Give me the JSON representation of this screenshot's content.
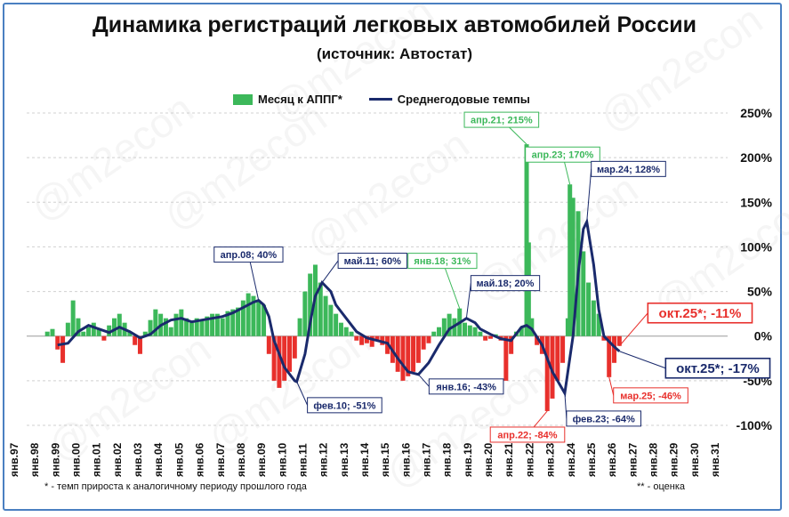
{
  "title": "Динамика регистраций легковых автомобилей России",
  "subtitle": "(источник: Автостат)",
  "legend": {
    "bar_label": "Месяц к АППГ*",
    "line_label": "Среднегодовые темпы"
  },
  "footnote_left": "* - темп прироста к аналогичному периоду прошлого года",
  "footnote_right": "** - оценка",
  "watermark": "@m2econ",
  "colors": {
    "bar_positive": "#3cb85a",
    "bar_negative": "#e8302c",
    "line": "#1a2a6c",
    "frame": "#4a7fc1"
  },
  "chart_data": {
    "type": "bar+line",
    "title": "Динамика регистраций легковых автомобилей России",
    "ylim": [
      -100,
      250
    ],
    "yticks": [
      -100,
      -50,
      0,
      50,
      100,
      150,
      200,
      250
    ],
    "ytick_labels": [
      "-100%",
      "-50%",
      "0%",
      "50%",
      "100%",
      "150%",
      "200%",
      "250%"
    ],
    "x_range": [
      1997,
      2031
    ],
    "xtick_labels": [
      "янв.97",
      "янв.98",
      "янв.99",
      "янв.00",
      "янв.01",
      "янв.02",
      "янв.03",
      "янв.04",
      "янв.05",
      "янв.06",
      "янв.07",
      "янв.08",
      "янв.09",
      "янв.10",
      "янв.11",
      "янв.12",
      "янв.13",
      "янв.14",
      "янв.15",
      "янв.16",
      "янв.17",
      "янв.18",
      "янв.19",
      "янв.20",
      "янв.21",
      "янв.22",
      "янв.23",
      "янв.24",
      "янв.25",
      "янв.26",
      "янв.27",
      "янв.28",
      "янв.29",
      "янв.30",
      "янв.31"
    ],
    "grid": "horizontal dashed",
    "legend_position": "top",
    "series": [
      {
        "name": "Месяц к АППГ*",
        "kind": "bar",
        "points": [
          [
            1998.0,
            5
          ],
          [
            1998.25,
            8
          ],
          [
            1998.5,
            -15
          ],
          [
            1998.75,
            -30
          ],
          [
            1999.0,
            15
          ],
          [
            1999.25,
            40
          ],
          [
            1999.5,
            20
          ],
          [
            1999.75,
            5
          ],
          [
            2000.0,
            10
          ],
          [
            2000.25,
            15
          ],
          [
            2000.5,
            8
          ],
          [
            2000.75,
            -5
          ],
          [
            2001.0,
            12
          ],
          [
            2001.25,
            20
          ],
          [
            2001.5,
            25
          ],
          [
            2001.75,
            15
          ],
          [
            2002.0,
            5
          ],
          [
            2002.25,
            -10
          ],
          [
            2002.5,
            -20
          ],
          [
            2002.75,
            5
          ],
          [
            2003.0,
            18
          ],
          [
            2003.25,
            30
          ],
          [
            2003.5,
            25
          ],
          [
            2003.75,
            20
          ],
          [
            2004.0,
            10
          ],
          [
            2004.25,
            25
          ],
          [
            2004.5,
            30
          ],
          [
            2004.75,
            20
          ],
          [
            2005.0,
            15
          ],
          [
            2005.25,
            20
          ],
          [
            2005.5,
            18
          ],
          [
            2005.75,
            22
          ],
          [
            2006.0,
            25
          ],
          [
            2006.25,
            25
          ],
          [
            2006.5,
            20
          ],
          [
            2006.75,
            28
          ],
          [
            2007.0,
            30
          ],
          [
            2007.25,
            32
          ],
          [
            2007.5,
            40
          ],
          [
            2007.75,
            48
          ],
          [
            2008.0,
            45
          ],
          [
            2008.25,
            40
          ],
          [
            2008.5,
            35
          ],
          [
            2008.75,
            -20
          ],
          [
            2009.0,
            -50
          ],
          [
            2009.25,
            -58
          ],
          [
            2009.5,
            -50
          ],
          [
            2009.75,
            -40
          ],
          [
            2010.0,
            -25
          ],
          [
            2010.25,
            20
          ],
          [
            2010.5,
            50
          ],
          [
            2010.75,
            70
          ],
          [
            2011.0,
            80
          ],
          [
            2011.25,
            60
          ],
          [
            2011.5,
            45
          ],
          [
            2011.75,
            35
          ],
          [
            2012.0,
            25
          ],
          [
            2012.25,
            15
          ],
          [
            2012.5,
            10
          ],
          [
            2012.75,
            5
          ],
          [
            2013.0,
            -5
          ],
          [
            2013.25,
            -10
          ],
          [
            2013.5,
            -8
          ],
          [
            2013.75,
            -12
          ],
          [
            2014.0,
            -5
          ],
          [
            2014.25,
            -10
          ],
          [
            2014.5,
            -20
          ],
          [
            2014.75,
            -30
          ],
          [
            2015.0,
            -40
          ],
          [
            2015.25,
            -50
          ],
          [
            2015.5,
            -45
          ],
          [
            2015.75,
            -40
          ],
          [
            2016.0,
            -30
          ],
          [
            2016.25,
            -15
          ],
          [
            2016.5,
            -8
          ],
          [
            2016.75,
            5
          ],
          [
            2017.0,
            10
          ],
          [
            2017.25,
            20
          ],
          [
            2017.5,
            25
          ],
          [
            2017.75,
            20
          ],
          [
            2018.0,
            31
          ],
          [
            2018.25,
            15
          ],
          [
            2018.5,
            12
          ],
          [
            2018.75,
            10
          ],
          [
            2019.0,
            5
          ],
          [
            2019.25,
            -5
          ],
          [
            2019.5,
            -3
          ],
          [
            2019.75,
            2
          ],
          [
            2020.0,
            -5
          ],
          [
            2020.25,
            -50
          ],
          [
            2020.5,
            -20
          ],
          [
            2020.75,
            5
          ],
          [
            2021.0,
            10
          ],
          [
            2021.25,
            215
          ],
          [
            2021.35,
            105
          ],
          [
            2021.5,
            20
          ],
          [
            2021.75,
            -10
          ],
          [
            2022.0,
            -20
          ],
          [
            2022.25,
            -84
          ],
          [
            2022.5,
            -70
          ],
          [
            2022.75,
            -50
          ],
          [
            2023.0,
            -30
          ],
          [
            2023.25,
            20
          ],
          [
            2023.35,
            170
          ],
          [
            2023.5,
            155
          ],
          [
            2023.75,
            140
          ],
          [
            2024.0,
            95
          ],
          [
            2024.25,
            60
          ],
          [
            2024.5,
            40
          ],
          [
            2024.75,
            25
          ],
          [
            2025.0,
            -5
          ],
          [
            2025.25,
            -46
          ],
          [
            2025.5,
            -30
          ],
          [
            2025.75,
            -11
          ]
        ]
      },
      {
        "name": "Среднегодовые темпы",
        "kind": "line",
        "points": [
          [
            1998.5,
            -10
          ],
          [
            1999.0,
            -8
          ],
          [
            1999.5,
            5
          ],
          [
            2000.0,
            12
          ],
          [
            2000.5,
            8
          ],
          [
            2001.0,
            4
          ],
          [
            2001.5,
            10
          ],
          [
            2002.0,
            5
          ],
          [
            2002.5,
            -2
          ],
          [
            2003.0,
            2
          ],
          [
            2003.5,
            12
          ],
          [
            2004.0,
            18
          ],
          [
            2004.5,
            20
          ],
          [
            2005.0,
            16
          ],
          [
            2005.5,
            18
          ],
          [
            2006.0,
            20
          ],
          [
            2006.5,
            22
          ],
          [
            2007.0,
            26
          ],
          [
            2007.5,
            32
          ],
          [
            2008.0,
            38
          ],
          [
            2008.25,
            40
          ],
          [
            2008.5,
            35
          ],
          [
            2008.75,
            22
          ],
          [
            2009.0,
            -5
          ],
          [
            2009.5,
            -35
          ],
          [
            2010.0,
            -50
          ],
          [
            2010.1,
            -51
          ],
          [
            2010.5,
            -20
          ],
          [
            2010.75,
            15
          ],
          [
            2011.0,
            45
          ],
          [
            2011.33,
            60
          ],
          [
            2011.75,
            50
          ],
          [
            2012.0,
            35
          ],
          [
            2012.5,
            20
          ],
          [
            2013.0,
            5
          ],
          [
            2013.5,
            -2
          ],
          [
            2014.0,
            -5
          ],
          [
            2014.5,
            -8
          ],
          [
            2015.0,
            -25
          ],
          [
            2015.5,
            -40
          ],
          [
            2016.0,
            -43
          ],
          [
            2016.5,
            -30
          ],
          [
            2017.0,
            -10
          ],
          [
            2017.5,
            8
          ],
          [
            2018.0,
            15
          ],
          [
            2018.33,
            20
          ],
          [
            2018.75,
            15
          ],
          [
            2019.0,
            8
          ],
          [
            2019.5,
            2
          ],
          [
            2020.0,
            -3
          ],
          [
            2020.5,
            -5
          ],
          [
            2021.0,
            10
          ],
          [
            2021.25,
            12
          ],
          [
            2021.5,
            8
          ],
          [
            2022.0,
            -10
          ],
          [
            2022.5,
            -40
          ],
          [
            2023.0,
            -60
          ],
          [
            2023.1,
            -64
          ],
          [
            2023.5,
            0
          ],
          [
            2023.75,
            70
          ],
          [
            2024.0,
            120
          ],
          [
            2024.17,
            128
          ],
          [
            2024.5,
            80
          ],
          [
            2024.75,
            30
          ],
          [
            2025.0,
            0
          ],
          [
            2025.5,
            -12
          ],
          [
            2025.75,
            -17
          ]
        ]
      }
    ],
    "annotations": [
      {
        "text": "апр.08; 40%",
        "x": 2008.25,
        "y": 40,
        "color": "#1a2a6c",
        "series": "line"
      },
      {
        "text": "фев.10; -51%",
        "x": 2010.1,
        "y": -51,
        "color": "#1a2a6c",
        "series": "line"
      },
      {
        "text": "май.11; 60%",
        "x": 2011.33,
        "y": 60,
        "color": "#1a2a6c",
        "series": "line"
      },
      {
        "text": "янв.16; -43%",
        "x": 2016.0,
        "y": -43,
        "color": "#1a2a6c",
        "series": "line"
      },
      {
        "text": "янв.18; 31%",
        "x": 2018.0,
        "y": 31,
        "color": "#3cb85a",
        "series": "bar"
      },
      {
        "text": "май.18; 20%",
        "x": 2018.33,
        "y": 20,
        "color": "#1a2a6c",
        "series": "line"
      },
      {
        "text": "апр.21; 215%",
        "x": 2021.25,
        "y": 215,
        "color": "#3cb85a",
        "series": "bar"
      },
      {
        "text": "апр.22; -84%",
        "x": 2022.25,
        "y": -84,
        "color": "#e8302c",
        "series": "bar"
      },
      {
        "text": "апр.23; 170%",
        "x": 2023.35,
        "y": 170,
        "color": "#3cb85a",
        "series": "bar"
      },
      {
        "text": "фев.23; -64%",
        "x": 2023.1,
        "y": -64,
        "color": "#1a2a6c",
        "series": "line"
      },
      {
        "text": "мар.24; 128%",
        "x": 2024.17,
        "y": 128,
        "color": "#1a2a6c",
        "series": "line"
      },
      {
        "text": "мар.25; -46%",
        "x": 2025.25,
        "y": -46,
        "color": "#e8302c",
        "series": "bar"
      },
      {
        "text": "окт.25*; -11%",
        "x": 2025.75,
        "y": -11,
        "color": "#e8302c",
        "series": "bar",
        "large": true
      },
      {
        "text": "окт.25*; -17%",
        "x": 2025.75,
        "y": -17,
        "color": "#1a2a6c",
        "series": "line",
        "large": true
      }
    ]
  }
}
